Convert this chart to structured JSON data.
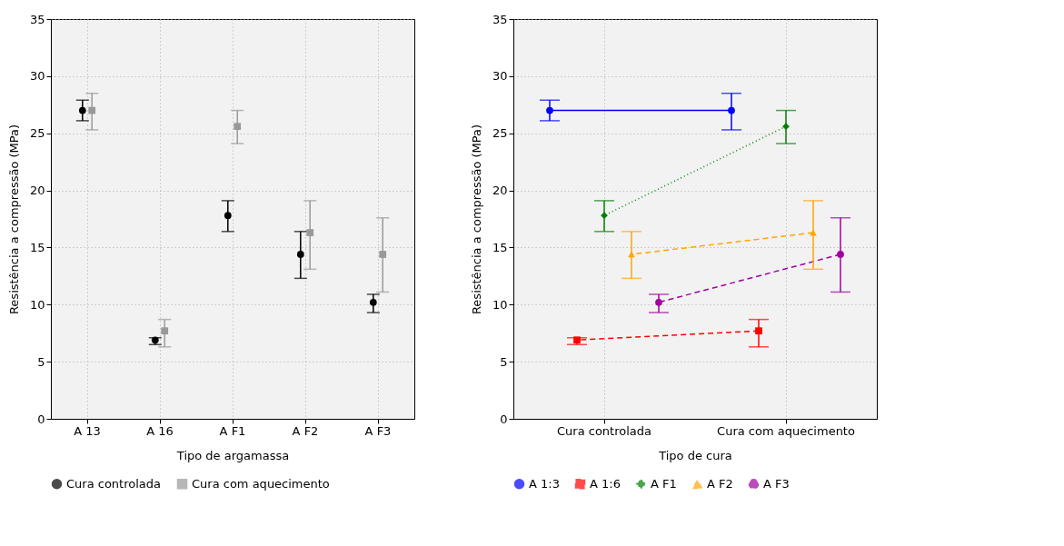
{
  "chart_data": [
    {
      "type": "scatter",
      "xlabel": "Tipo de argamassa",
      "ylabel": "Resistência a compressão (MPa)",
      "categories": [
        "A 13",
        "A 16",
        "A F1",
        "A F2",
        "A F3"
      ],
      "ylim": [
        0,
        35
      ],
      "yticks": [
        0,
        5,
        10,
        15,
        20,
        25,
        30,
        35
      ],
      "grid": true,
      "legend": "bottom",
      "series": [
        {
          "name": "Cura controlada",
          "color": "#000000",
          "marker": "circle",
          "values": [
            27.0,
            6.9,
            17.8,
            14.4,
            10.2
          ],
          "errors": [
            [
              26.1,
              27.9
            ],
            [
              6.5,
              7.1
            ],
            [
              16.4,
              19.1
            ],
            [
              12.3,
              16.4
            ],
            [
              9.3,
              10.9
            ]
          ]
        },
        {
          "name": "Cura com aquecimento",
          "color": "#999999",
          "marker": "square",
          "values": [
            27.0,
            7.7,
            25.6,
            16.3,
            14.4
          ],
          "errors": [
            [
              25.3,
              28.5
            ],
            [
              6.3,
              8.7
            ],
            [
              24.1,
              27.0
            ],
            [
              13.1,
              19.1
            ],
            [
              11.1,
              17.6
            ]
          ]
        }
      ]
    },
    {
      "type": "line",
      "xlabel": "Tipo de cura",
      "ylabel": "Resistência a compressão (MPa)",
      "categories": [
        "Cura controlada",
        "Cura com aquecimento"
      ],
      "ylim": [
        0,
        35
      ],
      "yticks": [
        0,
        5,
        10,
        15,
        20,
        25,
        30,
        35
      ],
      "grid": true,
      "legend": "bottom",
      "series": [
        {
          "name": "A 1:3",
          "color": "#0000ff",
          "marker": "circle",
          "line_style": "solid",
          "values": [
            27.0,
            27.0
          ],
          "errors": [
            [
              26.1,
              27.9
            ],
            [
              25.3,
              28.5
            ]
          ]
        },
        {
          "name": "A 1:6",
          "color": "#ff0000",
          "marker": "square",
          "line_style": "dashed",
          "values": [
            6.9,
            7.7
          ],
          "errors": [
            [
              6.5,
              7.1
            ],
            [
              6.3,
              8.7
            ]
          ]
        },
        {
          "name": "A F1",
          "color": "#008000",
          "marker": "diamond",
          "line_style": "dotted",
          "values": [
            17.8,
            25.6
          ],
          "errors": [
            [
              16.4,
              19.1
            ],
            [
              24.1,
              27.0
            ]
          ]
        },
        {
          "name": "A F2",
          "color": "#ffa500",
          "marker": "triangle",
          "line_style": "dashed",
          "values": [
            14.4,
            16.3
          ],
          "errors": [
            [
              12.3,
              16.4
            ],
            [
              13.1,
              19.1
            ]
          ]
        },
        {
          "name": "A F3",
          "color": "#a000a0",
          "marker": "circle",
          "line_style": "dashed",
          "values": [
            10.2,
            14.4
          ],
          "errors": [
            [
              9.3,
              10.9
            ],
            [
              11.1,
              17.6
            ]
          ]
        }
      ]
    }
  ]
}
